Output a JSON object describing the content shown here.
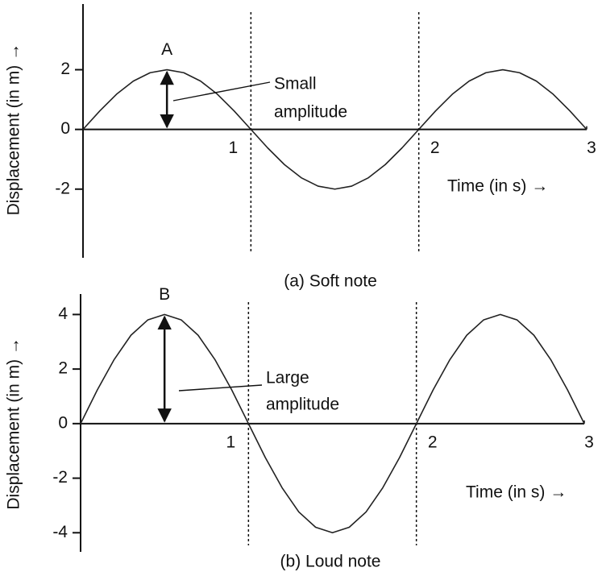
{
  "chart_data": [
    {
      "type": "line",
      "caption": "(a) Soft note",
      "y_label": "Displacement (in m) →",
      "x_label": "Time (in s) →",
      "point_label": "A",
      "annotation": [
        "Small",
        "amplitude"
      ],
      "x": [
        0,
        0.1,
        0.2,
        0.3,
        0.4,
        0.5,
        0.6,
        0.7,
        0.8,
        0.9,
        1,
        1.1,
        1.2,
        1.3,
        1.4,
        1.5,
        1.6,
        1.7,
        1.8,
        1.9,
        2,
        2.1,
        2.2,
        2.3,
        2.4,
        2.5,
        2.6,
        2.7,
        2.8,
        2.9,
        3
      ],
      "values": [
        0,
        0.62,
        1.18,
        1.62,
        1.9,
        2,
        1.9,
        1.62,
        1.18,
        0.62,
        0,
        -0.62,
        -1.18,
        -1.62,
        -1.9,
        -2,
        -1.9,
        -1.62,
        -1.18,
        -0.62,
        0,
        0.62,
        1.18,
        1.62,
        1.9,
        2,
        1.9,
        1.62,
        1.18,
        0.62,
        0
      ],
      "color": "#222222",
      "xlim": [
        0,
        3
      ],
      "xticks": [
        1,
        2,
        3
      ],
      "ylim": [
        -4.3,
        4.2
      ],
      "yticks": [
        -2,
        0,
        2
      ]
    },
    {
      "type": "line",
      "caption": "(b) Loud note",
      "y_label": "Displacement (in m) →",
      "x_label": "Time (in s) →",
      "point_label": "B",
      "annotation": [
        "Large",
        "amplitude"
      ],
      "x": [
        0,
        0.1,
        0.2,
        0.3,
        0.4,
        0.5,
        0.6,
        0.7,
        0.8,
        0.9,
        1,
        1.1,
        1.2,
        1.3,
        1.4,
        1.5,
        1.6,
        1.7,
        1.8,
        1.9,
        2,
        2.1,
        2.2,
        2.3,
        2.4,
        2.5,
        2.6,
        2.7,
        2.8,
        2.9,
        3
      ],
      "values": [
        0,
        1.24,
        2.35,
        3.24,
        3.8,
        4,
        3.8,
        3.24,
        2.35,
        1.24,
        0,
        -1.24,
        -2.35,
        -3.24,
        -3.8,
        -4,
        -3.8,
        -3.24,
        -2.35,
        -1.24,
        0,
        1.24,
        2.35,
        3.24,
        3.8,
        4,
        3.8,
        3.24,
        2.35,
        1.24,
        0
      ],
      "color": "#222222",
      "xlim": [
        0,
        3
      ],
      "xticks": [
        1,
        2,
        3
      ],
      "ylim": [
        -4.7,
        4.75
      ],
      "yticks": [
        -4,
        -2,
        0,
        2,
        4
      ]
    }
  ]
}
